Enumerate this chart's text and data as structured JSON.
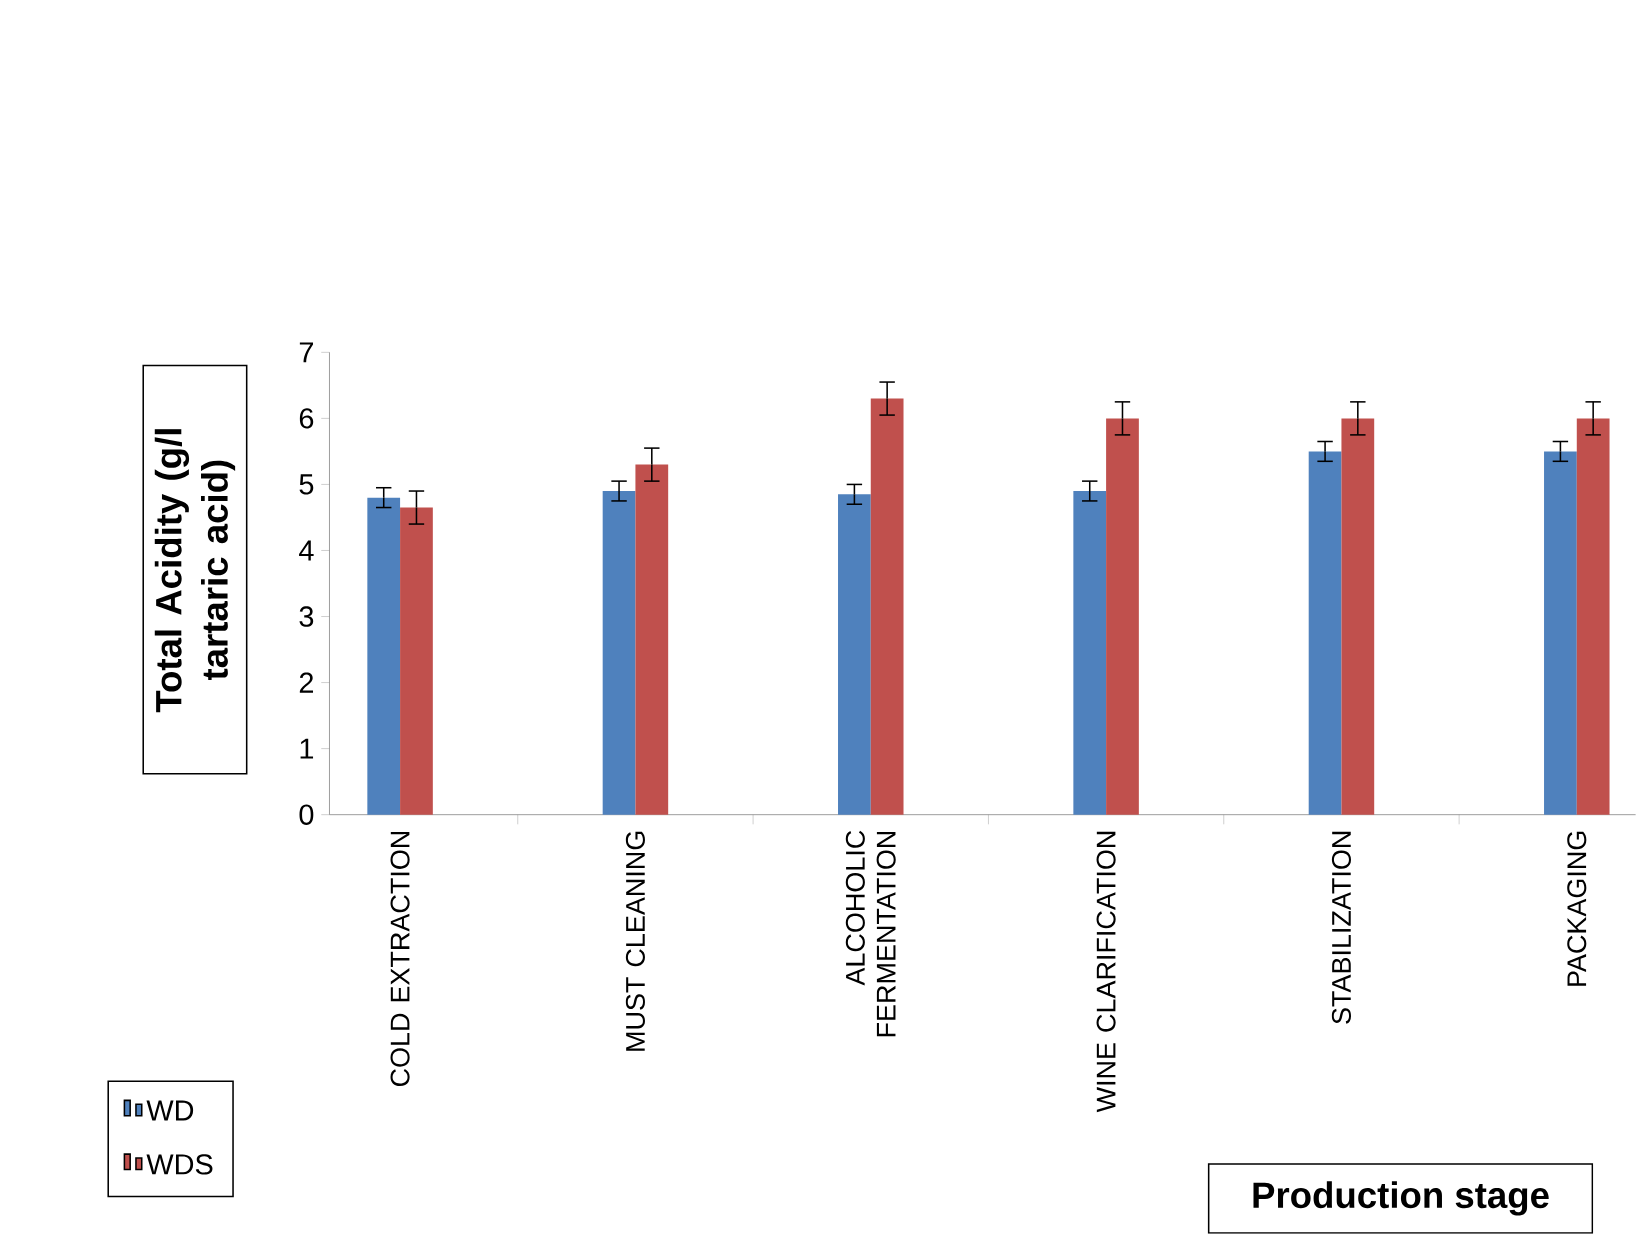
{
  "chart_data": {
    "type": "bar",
    "xlabel": "Production stage",
    "ylabel": "Total  Acidity (g/l tartaric acid)",
    "categories": [
      "COLD EXTRACTION",
      "MUST CLEANING",
      "ALCOHOLIC FERMENTATION",
      "WINE CLARIFICATION",
      "STABILIZATION",
      "PACKAGING"
    ],
    "series": [
      {
        "name": "WD",
        "color": "#4f81bd",
        "values": [
          4.8,
          4.9,
          4.85,
          4.9,
          5.5,
          5.5
        ],
        "errors": [
          0.15,
          0.15,
          0.15,
          0.15,
          0.15,
          0.15
        ]
      },
      {
        "name": "WDS",
        "color": "#c0504d",
        "values": [
          4.65,
          5.3,
          6.3,
          6.0,
          6.0,
          6.0
        ],
        "errors": [
          0.25,
          0.25,
          0.25,
          0.25,
          0.25,
          0.25
        ]
      }
    ],
    "ylim": [
      0,
      7
    ],
    "yticks": [
      0,
      1,
      2,
      3,
      4,
      5,
      6,
      7
    ],
    "grid": false,
    "legend": "bottom left"
  }
}
